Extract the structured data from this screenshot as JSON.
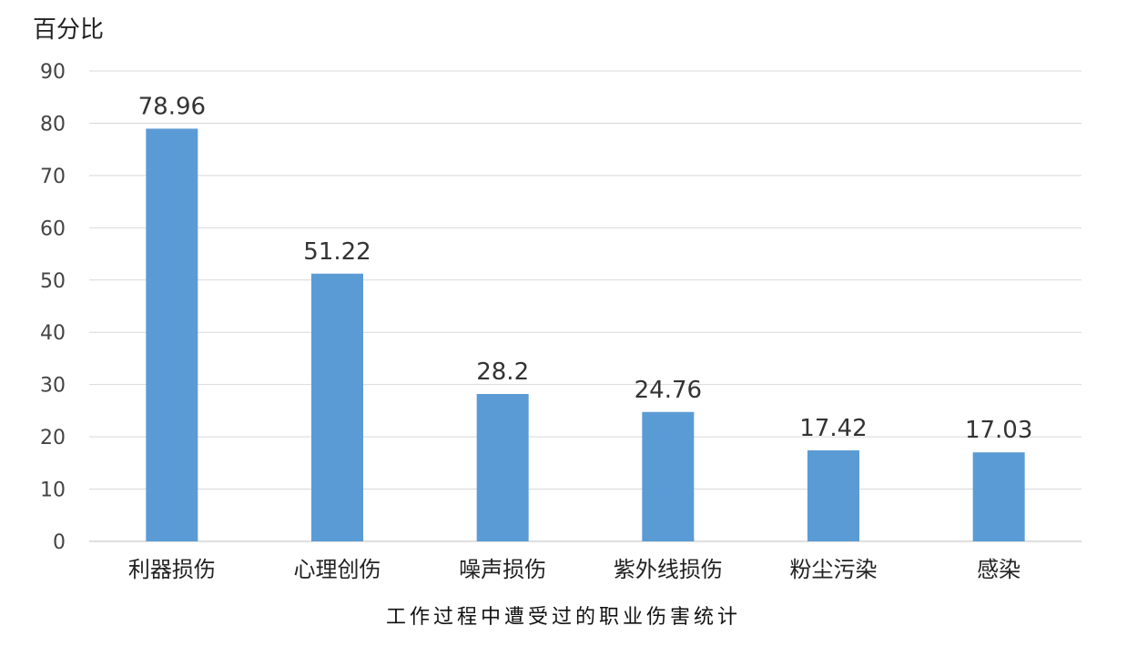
{
  "chart_data": {
    "type": "bar",
    "categories": [
      "利器损伤",
      "心理创伤",
      "噪声损伤",
      "紫外线损伤",
      "粉尘污染",
      "感染"
    ],
    "values": [
      78.96,
      51.22,
      28.2,
      24.76,
      17.42,
      17.03
    ],
    "value_labels": [
      "78.96",
      "51.22",
      "28.2",
      "24.76",
      "17.42",
      "17.03"
    ],
    "ylabel": "百分比",
    "ylim": [
      0,
      90
    ],
    "yticks": [
      0,
      10,
      20,
      30,
      40,
      50,
      60,
      70,
      80,
      90
    ],
    "grid": true,
    "caption": "工作过程中遭受过的职业伤害统计",
    "bar_color": "#5b9bd5"
  }
}
